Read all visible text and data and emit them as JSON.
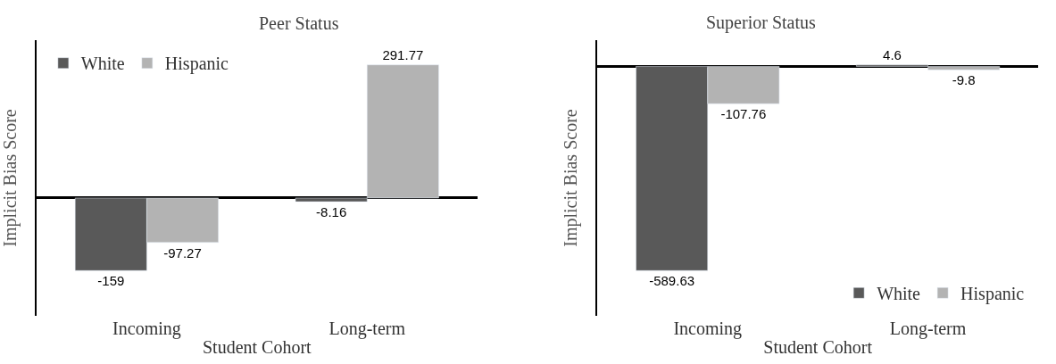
{
  "chart_data": [
    {
      "type": "bar",
      "title": "Peer Status",
      "xlabel": "Student Cohort",
      "ylabel": "Implicit Bias Score",
      "categories": [
        "Incoming",
        "Long-term"
      ],
      "series": [
        {
          "name": "White",
          "color": "#595959",
          "values": [
            -159,
            -8.16
          ]
        },
        {
          "name": "Hispanic",
          "color": "#b3b3b3",
          "values": [
            -97.27,
            291.77
          ]
        }
      ],
      "data_labels": true,
      "legend": "top left"
    },
    {
      "type": "bar",
      "title": "Superior Status",
      "xlabel": "Student Cohort",
      "ylabel": "Implicit Bias Score",
      "categories": [
        "Incoming",
        "Long-term"
      ],
      "series": [
        {
          "name": "White",
          "color": "#595959",
          "values": [
            -589.63,
            4.6
          ]
        },
        {
          "name": "Hispanic",
          "color": "#b3b3b3",
          "values": [
            -107.76,
            -9.8
          ]
        }
      ],
      "data_labels": true,
      "legend": "bottom right"
    }
  ]
}
